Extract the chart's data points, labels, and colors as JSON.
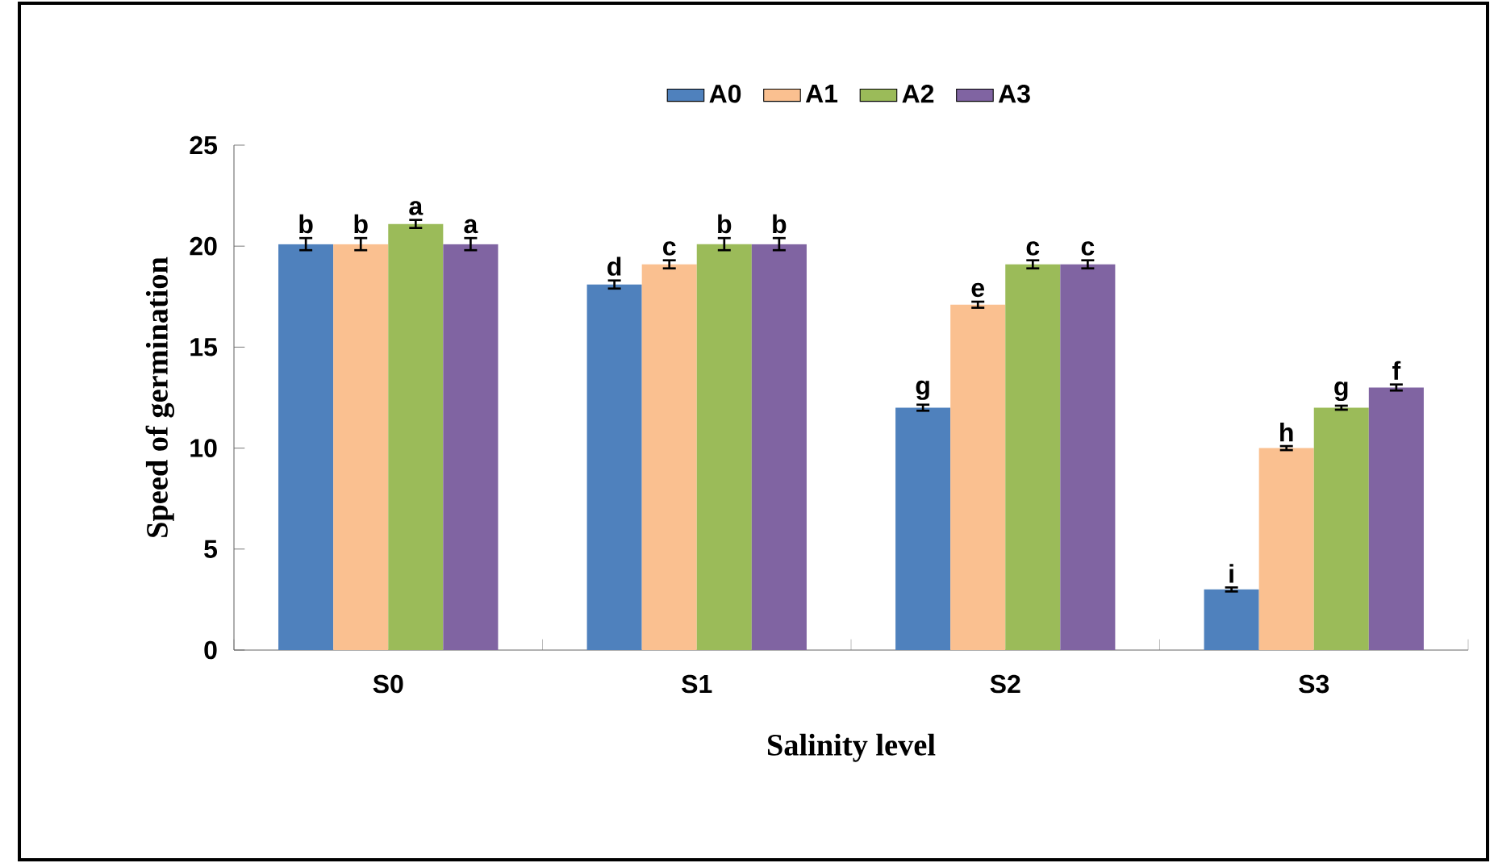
{
  "chart_data": {
    "type": "bar",
    "xlabel": "Salinity level",
    "ylabel": "Speed of germination",
    "categories": [
      "S0",
      "S1",
      "S2",
      "S3"
    ],
    "series": [
      {
        "name": "A0",
        "color": "#4f81bd",
        "values": [
          20.1,
          18.1,
          12.0,
          3.0
        ],
        "errors": [
          0.3,
          0.2,
          0.15,
          0.1
        ],
        "value_labels": [
          "b",
          "d",
          "g",
          "i"
        ]
      },
      {
        "name": "A1",
        "color": "#fac090",
        "values": [
          20.1,
          19.1,
          17.1,
          10.0
        ],
        "errors": [
          0.3,
          0.2,
          0.15,
          0.1
        ],
        "value_labels": [
          "b",
          "c",
          "e",
          "h"
        ]
      },
      {
        "name": "A2",
        "color": "#9bbb59",
        "values": [
          21.1,
          20.1,
          19.1,
          12.0
        ],
        "errors": [
          0.2,
          0.3,
          0.2,
          0.1
        ],
        "value_labels": [
          "a",
          "b",
          "c",
          "g"
        ]
      },
      {
        "name": "A3",
        "color": "#8064a2",
        "values": [
          20.1,
          20.1,
          19.1,
          13.0
        ],
        "errors": [
          0.3,
          0.3,
          0.2,
          0.15
        ],
        "value_labels": [
          "a",
          "b",
          "c",
          "f"
        ]
      }
    ],
    "ylim": [
      0,
      25
    ],
    "yticks": [
      0,
      5,
      10,
      15,
      20,
      25
    ],
    "grid": false,
    "legend": "top"
  }
}
